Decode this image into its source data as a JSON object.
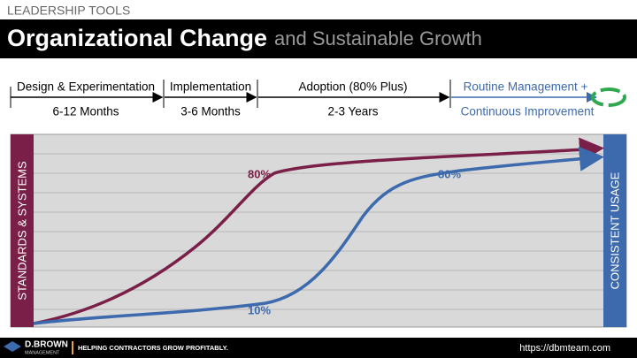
{
  "header": {
    "kicker": "LEADERSHIP TOOLS",
    "title": "Organizational Change",
    "subtitle": "and Sustainable Growth"
  },
  "phases": [
    {
      "label": "Design & Experimentation",
      "duration": "6-12 Months"
    },
    {
      "label": "Implementation",
      "duration": "3-6 Months"
    },
    {
      "label": "Adoption (80% Plus)",
      "duration": "2-3 Years"
    }
  ],
  "final_phase": {
    "label": "Routine Management +",
    "detail": "Continuous Improvement"
  },
  "diagram": {
    "left_band": "STANDARDS & SYSTEMS",
    "right_band": "CONSISTENT USAGE",
    "standards_label": "80%",
    "usage_top_label": "80%",
    "usage_bottom_label": "10%"
  },
  "footer": {
    "brand": "D.BROWN",
    "brand_sub": "MANAGEMENT",
    "tagline": "HELPING CONTRACTORS GROW PROFITABLY.",
    "url": "https://dbmteam.com"
  }
}
